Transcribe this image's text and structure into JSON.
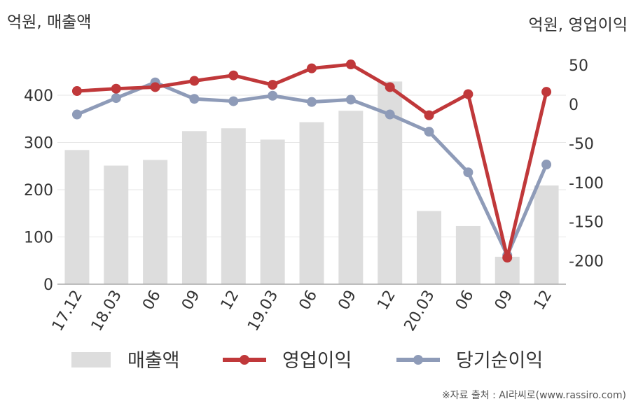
{
  "chart_data": {
    "type": "bar",
    "categories": [
      "17.12",
      "18.03",
      "06",
      "09",
      "12",
      "19.03",
      "06",
      "09",
      "12",
      "20.03",
      "06",
      "09",
      "12"
    ],
    "left_axis": {
      "label": "억원, 매출액",
      "ticks": [
        0,
        100,
        200,
        300,
        400
      ],
      "range": [
        0,
        480
      ]
    },
    "right_axis": {
      "label": "억원, 영업이익",
      "ticks": [
        50,
        0,
        -50,
        -100,
        -150,
        -200
      ],
      "range": [
        -230,
        60
      ]
    },
    "series": [
      {
        "name": "매출액",
        "type": "bar",
        "axis": "left",
        "color": "#dddddd",
        "values": [
          284,
          251,
          263,
          324,
          330,
          306,
          343,
          367,
          429,
          155,
          123,
          58,
          209
        ]
      },
      {
        "name": "영업이익",
        "type": "line",
        "axis": "right",
        "color": "#c0383a",
        "values": [
          17,
          20,
          22,
          30,
          37,
          25,
          46,
          51,
          22,
          -14,
          13,
          -196,
          16
        ]
      },
      {
        "name": "당기순이익",
        "type": "line",
        "axis": "right",
        "color": "#8e9bb8",
        "values": [
          -13,
          8,
          28,
          7,
          4,
          11,
          3,
          6,
          -13,
          -35,
          -87,
          -193,
          -77
        ]
      }
    ],
    "grid": true,
    "legend": "bottom"
  },
  "source": "※자료 출처 : AI라씨로(www.rassiro.com)"
}
